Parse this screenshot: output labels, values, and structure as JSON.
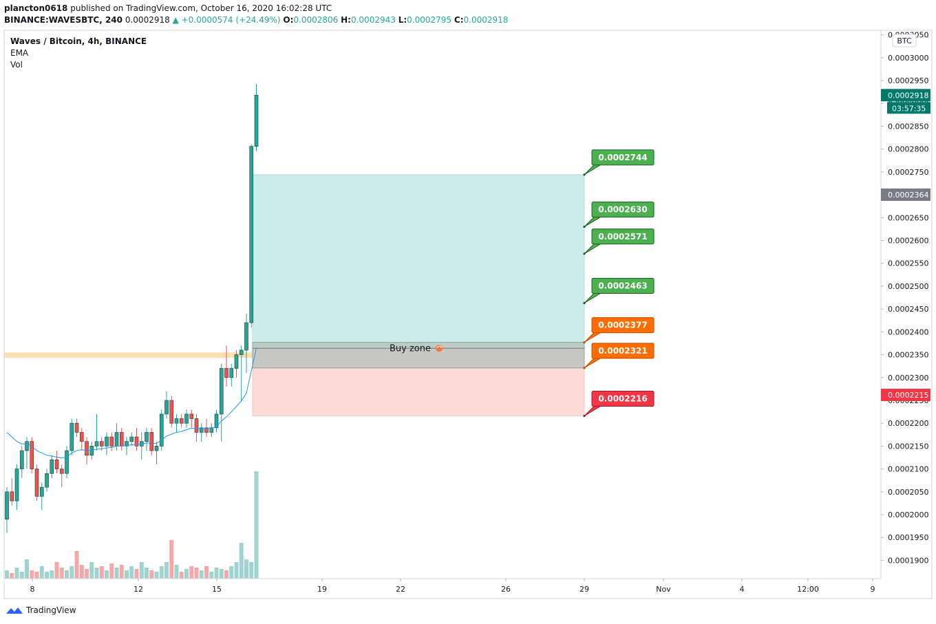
{
  "header": {
    "publisher": "plancton0618",
    "published_text": "published on TradingView.com, October 16, 2020 16:02:28 UTC",
    "symbol": "BINANCE:WAVESBTC, 240",
    "last": "0.0002918",
    "change": "▲ +0.0000574 (+24.49%)",
    "open_label": "O:",
    "open": "0.0002806",
    "high_label": "H:",
    "high": "0.0002943",
    "low_label": "L:",
    "low": "0.0002795",
    "close_label": "C:",
    "close": "0.0002918"
  },
  "legend": {
    "title": "Waves / Bitcoin, 4h, BINANCE",
    "indicators": [
      "EMA",
      "Vol"
    ]
  },
  "footer": {
    "brand": "TradingView"
  },
  "colors": {
    "up": "#26a69a",
    "down": "#ef5350",
    "ema": "#2196f3",
    "target_green": "#4caf50",
    "target_orange": "#ff6d00",
    "target_red": "#f23645",
    "profit_zone": "#cdebe9",
    "loss_zone": "#fcdada",
    "buy_zone": "#ffe0b2"
  },
  "chart_data": {
    "type": "candlestick",
    "currency": "BTC",
    "ylim": [
      0.000186,
      0.000306
    ],
    "y_ticks": [
      "0.0001900",
      "0.0001950",
      "0.0002000",
      "0.0002050",
      "0.0002100",
      "0.0002150",
      "0.0002200",
      "0.0002250",
      "0.0002300",
      "0.0002350",
      "0.0002400",
      "0.0002450",
      "0.0002500",
      "0.0002550",
      "0.0002600",
      "0.0002650",
      "0.0002700",
      "0.0002750",
      "0.0002800",
      "0.0002850",
      "0.0002900",
      "0.0002950",
      "0.0003000",
      "0.0003050"
    ],
    "x_ticks": [
      "8",
      "12",
      "15",
      "19",
      "22",
      "26",
      "29",
      "Nov",
      "4",
      "12:00",
      "9"
    ],
    "price_tags": {
      "current": "0.0002918",
      "countdown": "03:57:35",
      "gray": "0.0002364",
      "red": "0.0002215"
    },
    "candles": [
      [
        0.000199,
        0.000206,
        0.000196,
        0.000205
      ],
      [
        0.000205,
        0.000208,
        0.000202,
        0.000203
      ],
      [
        0.000203,
        0.000211,
        0.000201,
        0.00021
      ],
      [
        0.00021,
        0.000215,
        0.000208,
        0.000214
      ],
      [
        0.000214,
        0.000217,
        0.00021,
        0.000216
      ],
      [
        0.000216,
        0.000217,
        0.000209,
        0.00021
      ],
      [
        0.00021,
        0.000211,
        0.000203,
        0.000204
      ],
      [
        0.000204,
        0.000207,
        0.000201,
        0.000206
      ],
      [
        0.000206,
        0.00021,
        0.000205,
        0.000209
      ],
      [
        0.000209,
        0.000213,
        0.000208,
        0.000212
      ],
      [
        0.000212,
        0.000214,
        0.000209,
        0.00021
      ],
      [
        0.00021,
        0.000211,
        0.000206,
        0.000209
      ],
      [
        0.000209,
        0.000215,
        0.000208,
        0.000214
      ],
      [
        0.000214,
        0.000221,
        0.000213,
        0.00022
      ],
      [
        0.00022,
        0.000221,
        0.000217,
        0.000218
      ],
      [
        0.000218,
        0.000219,
        0.000214,
        0.000216
      ],
      [
        0.000216,
        0.000217,
        0.000211,
        0.000213
      ],
      [
        0.000213,
        0.000216,
        0.000212,
        0.000215
      ],
      [
        0.000215,
        0.000222,
        0.000214,
        0.000216
      ],
      [
        0.000216,
        0.000217,
        0.000214,
        0.000215
      ],
      [
        0.000215,
        0.000218,
        0.000213,
        0.000217
      ],
      [
        0.000217,
        0.000218,
        0.000214,
        0.000215
      ],
      [
        0.000215,
        0.00022,
        0.000214,
        0.000218
      ],
      [
        0.000218,
        0.000219,
        0.000214,
        0.000215
      ],
      [
        0.000215,
        0.000217,
        0.000213,
        0.000216
      ],
      [
        0.000216,
        0.000218,
        0.000215,
        0.000217
      ],
      [
        0.000217,
        0.000219,
        0.000214,
        0.000215
      ],
      [
        0.000215,
        0.000218,
        0.000212,
        0.000216
      ],
      [
        0.000216,
        0.000219,
        0.000214,
        0.000218
      ],
      [
        0.000218,
        0.000219,
        0.000213,
        0.000214
      ],
      [
        0.000214,
        0.000216,
        0.000211,
        0.000215
      ],
      [
        0.000215,
        0.000223,
        0.000214,
        0.000222
      ],
      [
        0.000222,
        0.000227,
        0.000221,
        0.000225
      ],
      [
        0.000225,
        0.000226,
        0.000219,
        0.00022
      ],
      [
        0.00022,
        0.000222,
        0.000218,
        0.000221
      ],
      [
        0.000221,
        0.000222,
        0.000219,
        0.00022
      ],
      [
        0.00022,
        0.000223,
        0.000219,
        0.000222
      ],
      [
        0.000222,
        0.000223,
        0.000219,
        0.000221
      ],
      [
        0.000221,
        0.000222,
        0.000216,
        0.000218
      ],
      [
        0.000218,
        0.00022,
        0.000216,
        0.000219
      ],
      [
        0.000219,
        0.000221,
        0.000217,
        0.000218
      ],
      [
        0.000218,
        0.00022,
        0.000217,
        0.000219
      ],
      [
        0.000219,
        0.000223,
        0.000218,
        0.000222
      ],
      [
        0.000222,
        0.000233,
        0.000216,
        0.000232
      ],
      [
        0.000232,
        0.000237,
        0.000228,
        0.00023
      ],
      [
        0.00023,
        0.000233,
        0.000228,
        0.000232
      ],
      [
        0.000232,
        0.000236,
        0.00023,
        0.000235
      ],
      [
        0.000235,
        0.000237,
        0.000225,
        0.000236
      ],
      [
        0.000236,
        0.000244,
        0.000231,
        0.000242
      ],
      [
        0.000242,
        0.000281,
        0.000241,
        0.0002806
      ],
      [
        0.0002806,
        0.0002943,
        0.0002795,
        0.0002918
      ]
    ],
    "ema": [
      0.000218,
      0.000217,
      0.000216,
      0.0002155,
      0.0002155,
      0.000215,
      0.000214,
      0.0002135,
      0.000213,
      0.0002128,
      0.0002126,
      0.0002124,
      0.0002126,
      0.0002135,
      0.000214,
      0.0002142,
      0.000214,
      0.0002141,
      0.0002143,
      0.0002144,
      0.0002146,
      0.0002147,
      0.000215,
      0.000215,
      0.0002151,
      0.0002153,
      0.0002153,
      0.0002154,
      0.0002157,
      0.0002156,
      0.0002156,
      0.0002163,
      0.0002172,
      0.0002176,
      0.000218,
      0.0002182,
      0.0002186,
      0.0002189,
      0.0002188,
      0.0002188,
      0.0002188,
      0.0002189,
      0.0002192,
      0.0002205,
      0.0002214,
      0.0002225,
      0.0002237,
      0.0002249,
      0.0002266,
      0.0002315,
      0.0002365
    ],
    "volume_scale_max": 100,
    "volumes": [
      6,
      4,
      8,
      5,
      14,
      6,
      5,
      9,
      5,
      6,
      12,
      8,
      6,
      9,
      20,
      10,
      7,
      12,
      8,
      9,
      6,
      11,
      8,
      10,
      6,
      9,
      7,
      12,
      8,
      6,
      5,
      9,
      12,
      28,
      10,
      5,
      7,
      9,
      8,
      6,
      9,
      5,
      8,
      7,
      6,
      9,
      12,
      26,
      14,
      12,
      78
    ],
    "position": {
      "entry": 0.0002364,
      "buy_zone_label": "Buy zone",
      "buy_zone_range": [
        0.0002321,
        0.0002377
      ],
      "profit_top": 0.0002744,
      "stop": 0.0002216,
      "targets": [
        {
          "label": "0.0002744",
          "price": 0.0002744,
          "color": "#4caf50"
        },
        {
          "label": "0.0002630",
          "price": 0.000263,
          "color": "#4caf50"
        },
        {
          "label": "0.0002571",
          "price": 0.0002571,
          "color": "#4caf50"
        },
        {
          "label": "0.0002463",
          "price": 0.0002463,
          "color": "#4caf50"
        },
        {
          "label": "0.0002377",
          "price": 0.0002377,
          "color": "#ff6d00"
        },
        {
          "label": "0.0002321",
          "price": 0.0002321,
          "color": "#ff6d00"
        },
        {
          "label": "0.0002216",
          "price": 0.0002216,
          "color": "#f23645"
        }
      ]
    }
  }
}
